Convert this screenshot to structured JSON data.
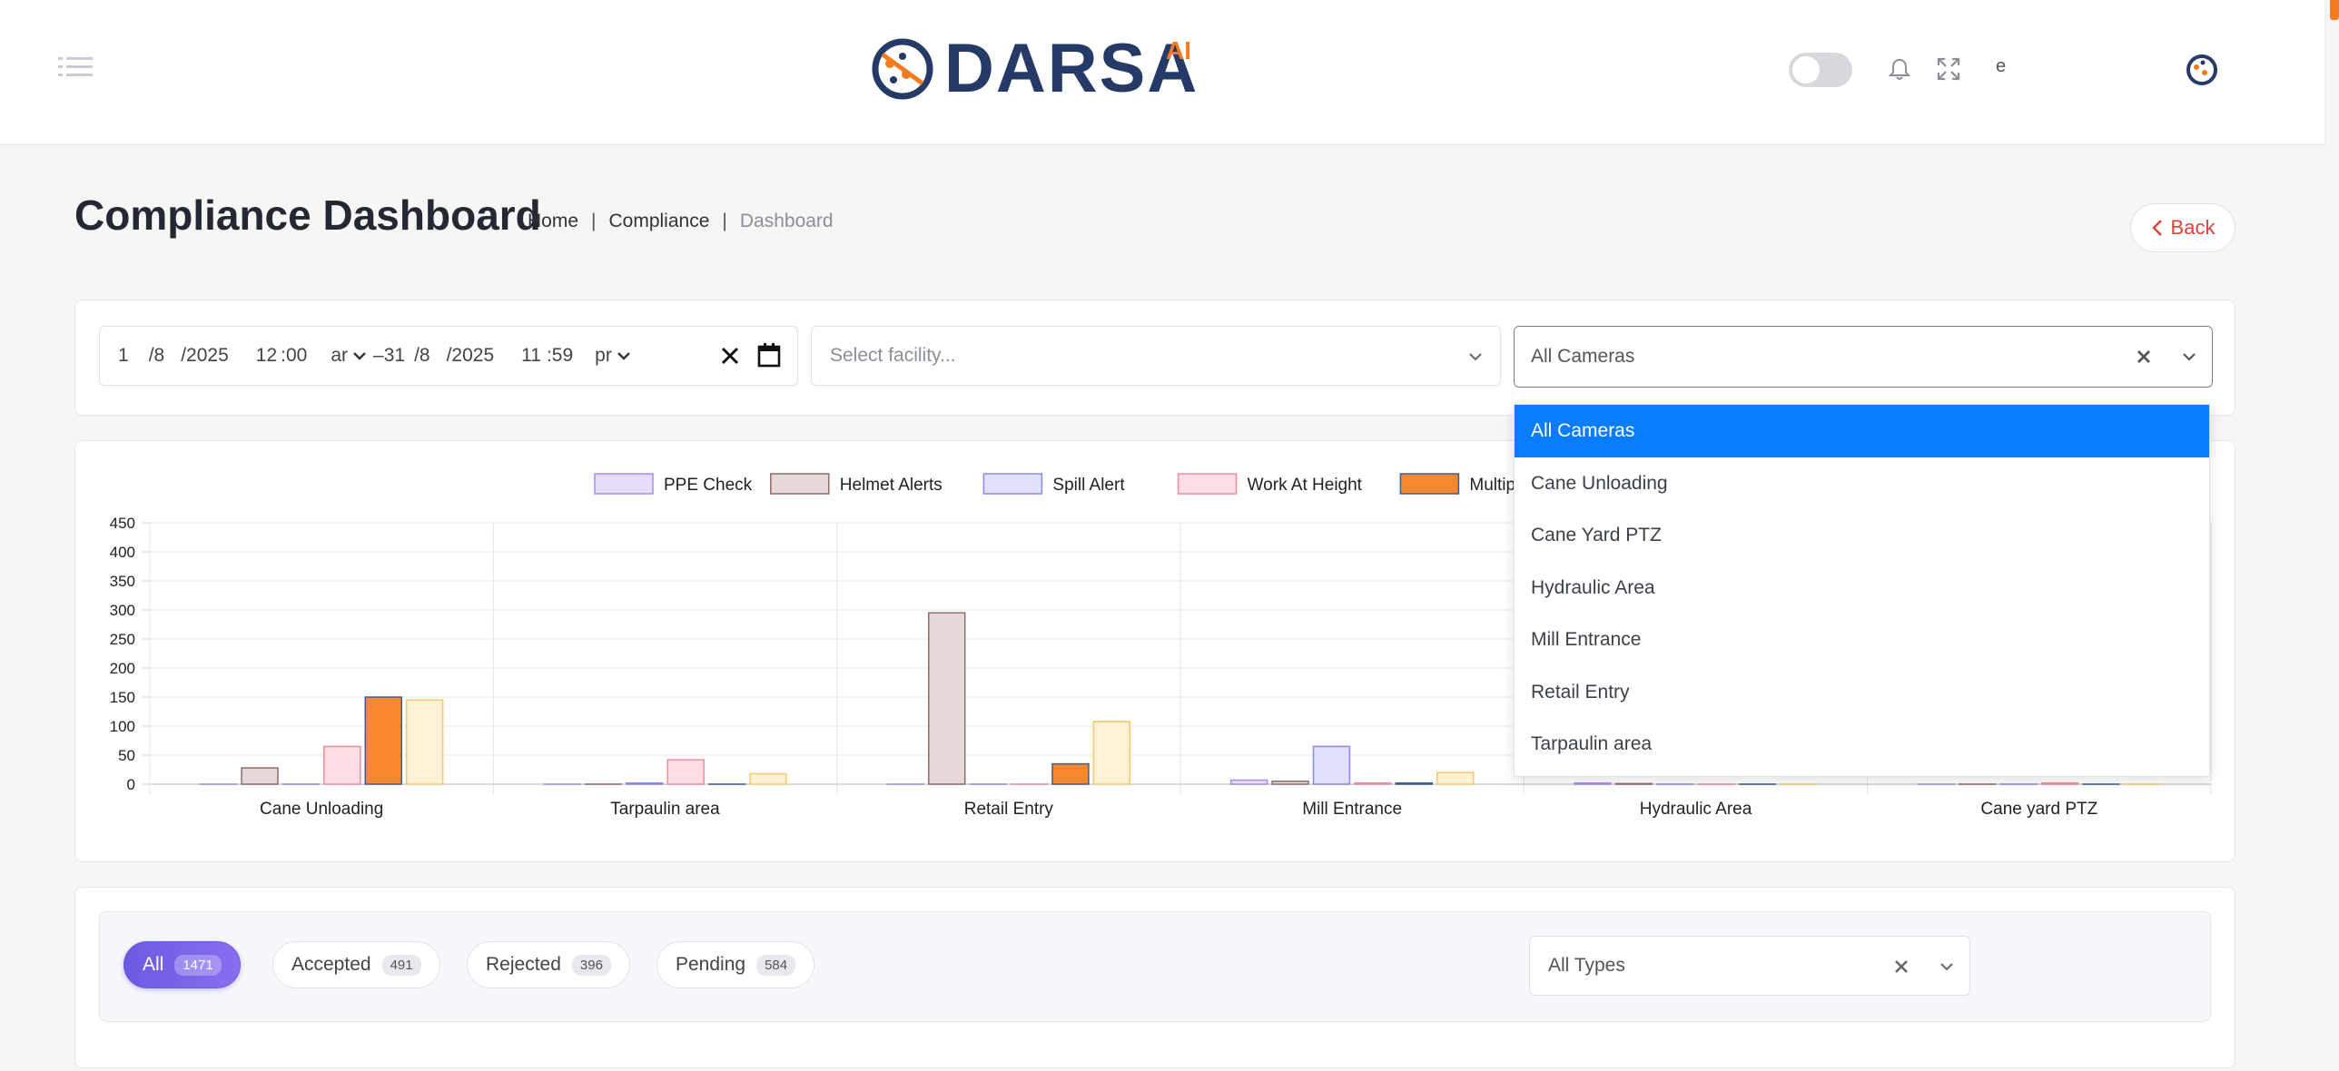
{
  "header": {
    "logo_text": "DARSA",
    "logo_suffix": "AI",
    "lang": "e"
  },
  "page": {
    "title": "Compliance Dashboard",
    "breadcrumb": [
      "Home",
      "Compliance",
      "Dashboard"
    ],
    "back_label": "Back"
  },
  "filters": {
    "date_range": {
      "start": [
        "1",
        "/8",
        "/2025",
        "12",
        ":00",
        "ar"
      ],
      "end": [
        "31",
        "/8",
        "/2025",
        "11",
        ":59",
        "pr"
      ],
      "separator": "–"
    },
    "facility_placeholder": "Select facility...",
    "camera_value": "All Cameras",
    "camera_options": [
      "All Cameras",
      "Cane Unloading",
      "Cane Yard PTZ",
      "Hydraulic Area",
      "Mill Entrance",
      "Retail Entry",
      "Tarpaulin area"
    ],
    "camera_selected_index": 0
  },
  "chart_data": {
    "type": "bar",
    "categories": [
      "Cane Unloading",
      "Tarpaulin area",
      "Retail Entry",
      "Mill Entrance",
      "Hydraulic Area",
      "Cane yard PTZ"
    ],
    "ylim": [
      0,
      450
    ],
    "yticks": [
      "0",
      "50",
      "100",
      "150",
      "200",
      "250",
      "300",
      "350",
      "400",
      "450"
    ],
    "legend_position": "top",
    "series": [
      {
        "name": "PPE Check",
        "fill": "#e7dcfb",
        "stroke": "#a78bf0",
        "values": [
          0,
          0,
          0,
          7,
          2,
          0
        ]
      },
      {
        "name": "Helmet Alerts",
        "fill": "#e6d8d6",
        "stroke": "#8c6e6c",
        "values": [
          28,
          0,
          295,
          5,
          1,
          0
        ]
      },
      {
        "name": "Spill Alert",
        "fill": "#e0e0ff",
        "stroke": "#8d86f2",
        "values": [
          0,
          2,
          0,
          65,
          0,
          0
        ]
      },
      {
        "name": "Work At Height",
        "fill": "#ffdde4",
        "stroke": "#f08ba0",
        "values": [
          65,
          42,
          0,
          2,
          0,
          2
        ]
      },
      {
        "name": "Multiple Violation",
        "fill": "#f7882f",
        "stroke": "#3a5f8f",
        "values": [
          150,
          0,
          35,
          2,
          0,
          0
        ]
      },
      {
        "name": "",
        "fill": "#fff1d4",
        "stroke": "#f3c96b",
        "values": [
          145,
          18,
          108,
          20,
          0,
          0
        ]
      }
    ]
  },
  "tabs": [
    {
      "label": "All",
      "count": "1471"
    },
    {
      "label": "Accepted",
      "count": "491"
    },
    {
      "label": "Rejected",
      "count": "396"
    },
    {
      "label": "Pending",
      "count": "584"
    }
  ],
  "types_value": "All Types"
}
